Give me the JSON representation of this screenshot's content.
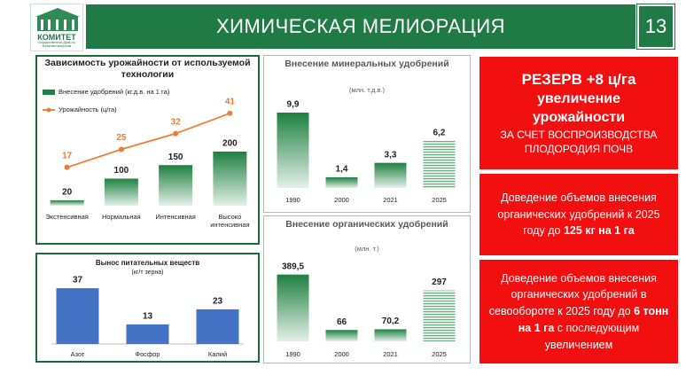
{
  "header": {
    "logo": {
      "title": "КОМИТЕТ",
      "subtitle": "Государственной Думы по аграрным вопросам"
    },
    "title": "ХИМИЧЕСКАЯ МЕЛИОРАЦИЯ",
    "page": 13
  },
  "chart_data": [
    {
      "type": "bar",
      "title": "Зависимость урожайности от используемой технологии",
      "categories": [
        "Экстенсивная",
        "Нормальная",
        "Интенсивная",
        "Высоко интенсивная"
      ],
      "series": [
        {
          "name": "Внесение удобрений (кг.д.в. на 1 га)",
          "color": "#1e8040",
          "values": [
            20,
            100,
            150,
            200
          ]
        },
        {
          "name": "Урожайность (ц/га)",
          "color": "#ed7d31",
          "type": "line",
          "axis": "y2",
          "values": [
            17,
            25,
            32,
            41
          ]
        }
      ],
      "ylim": [
        0,
        400
      ],
      "y2lim": [
        0,
        48
      ],
      "legend": "top-left"
    },
    {
      "type": "bar",
      "title": "Внесение минеральных удобрений",
      "subtitle": "(млн. т.д.в.)",
      "categories": [
        "1990",
        "2000",
        "2021",
        "2025"
      ],
      "values": [
        9.9,
        1.4,
        3.3,
        6.2
      ],
      "value_labels": [
        "9,9",
        "1,4",
        "3,3",
        "6,2"
      ],
      "color": "#1e8040",
      "hatched": [
        false,
        false,
        false,
        true
      ],
      "ylim": [
        0,
        12
      ]
    },
    {
      "type": "bar",
      "title": "Внесение органических удобрений",
      "subtitle": "(млн. т.)",
      "categories": [
        "1990",
        "2000",
        "2021",
        "2025"
      ],
      "values": [
        389.5,
        66,
        70.2,
        297
      ],
      "value_labels": [
        "389,5",
        "66",
        "70,2",
        "297"
      ],
      "color": "#1e8040",
      "hatched": [
        false,
        false,
        false,
        true
      ],
      "ylim": [
        0,
        450
      ]
    },
    {
      "type": "bar",
      "title": "Вынос питательных веществ",
      "subtitle": "(кг/т зерна)",
      "categories": [
        "Азот",
        "Фосфор",
        "Калий"
      ],
      "values": [
        37,
        13,
        23
      ],
      "color": "#4472c4",
      "ylim": [
        0,
        40
      ]
    }
  ],
  "panels": [
    {
      "heading": "РЕЗЕРВ +8 ц/га",
      "emphasis": "увеличение урожайности",
      "text": "ЗА СЧЕТ ВОСПРОИЗВОДСТВА ПЛОДОРОДИЯ ПОЧВ"
    },
    {
      "text": "Доведение объемов внесения органических удобрений к 2025 году до",
      "emphasis": "125 кг на 1 га"
    },
    {
      "text": "Доведение объемов внесения органических удобрений в севообороте к 2025 году до",
      "emphasis": "6 тонн на 1 га",
      "tail": "с последующим увеличением"
    }
  ]
}
